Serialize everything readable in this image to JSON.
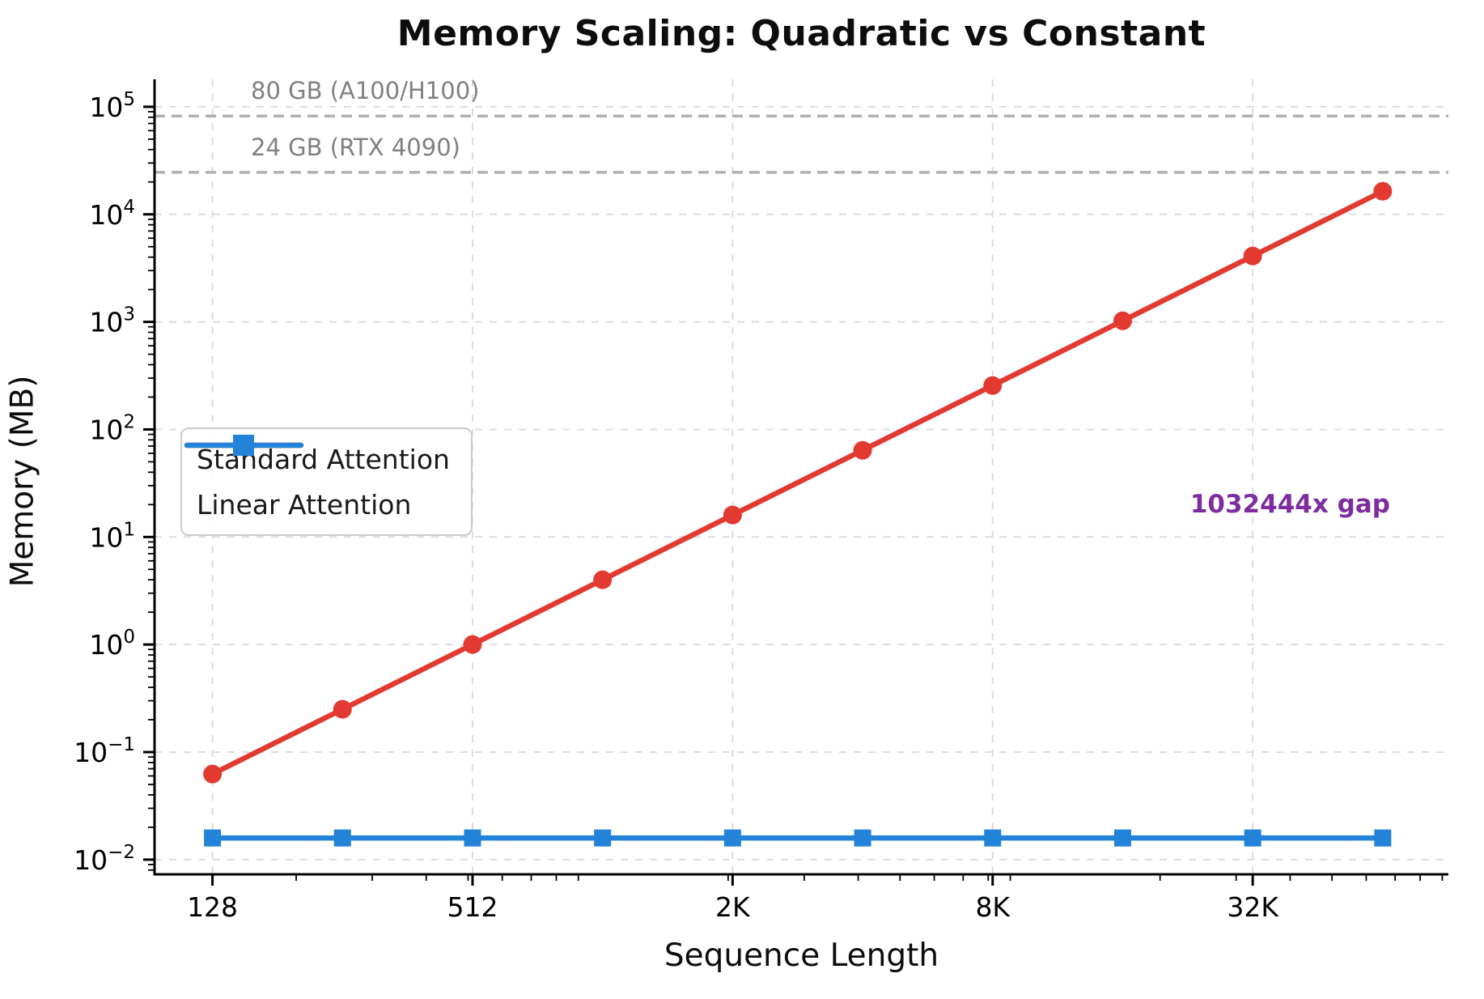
{
  "chart_data": {
    "type": "line",
    "title": "Memory Scaling: Quadratic vs Constant",
    "xlabel": "Sequence Length",
    "ylabel": "Memory (MB)",
    "xscale": "log2",
    "yscale": "log10",
    "xlim": [
      94,
      93000
    ],
    "ylim": [
      0.0073,
      180000
    ],
    "grid": true,
    "x": [
      128,
      256,
      512,
      1024,
      2048,
      4096,
      8192,
      16384,
      32768,
      65536
    ],
    "x_major_ticks": [
      {
        "value": 128,
        "label": "128"
      },
      {
        "value": 512,
        "label": "512"
      },
      {
        "value": 2048,
        "label": "2K"
      },
      {
        "value": 8192,
        "label": "8K"
      },
      {
        "value": 32768,
        "label": "32K"
      }
    ],
    "y_tick_exponents": [
      -2,
      -1,
      0,
      1,
      2,
      3,
      4,
      5
    ],
    "series": [
      {
        "name": "Standard Attention",
        "color": "#e23a30",
        "marker": "circle",
        "values": [
          0.0625,
          0.25,
          1,
          4,
          16,
          64,
          256,
          1024,
          4096,
          16384
        ]
      },
      {
        "name": "Linear Attention",
        "color": "#2383d8",
        "marker": "square",
        "values": [
          0.0159,
          0.0159,
          0.0159,
          0.0159,
          0.0159,
          0.0159,
          0.0159,
          0.0159,
          0.0159,
          0.0159
        ]
      }
    ],
    "reference_lines": [
      {
        "label": "80 GB (A100/H100)",
        "value": 81920,
        "color": "#b0b0b0",
        "label_color": "#808080"
      },
      {
        "label": "24 GB (RTX 4090)",
        "value": 24576,
        "color": "#b0b0b0",
        "label_color": "#808080"
      }
    ],
    "annotation": {
      "text": "1032444x gap",
      "color": "#7d2d9e",
      "x": 40000,
      "y": 20
    },
    "legend_position": "center-left"
  }
}
